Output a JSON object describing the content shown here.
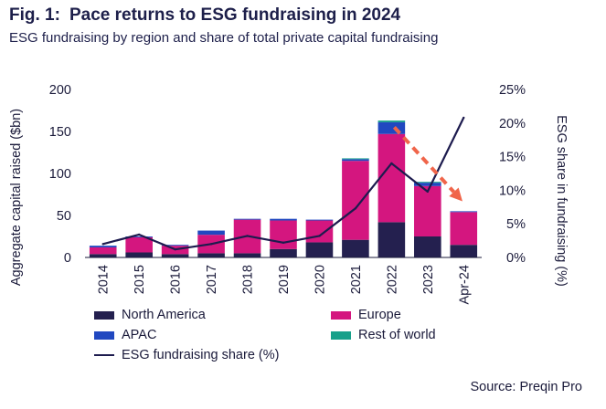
{
  "figure": {
    "number": "Fig. 1:",
    "title": "Pace returns to ESG fundraising in 2024",
    "subtitle": "ESG fundraising by region and share of total private capital fundraising",
    "source": "Source: Preqin Pro"
  },
  "colors": {
    "north_america": "#24204f",
    "europe": "#d4167f",
    "apac": "#2148c0",
    "rest_of_world": "#17a08a",
    "share_line": "#1d1b4e",
    "arrow": "#f0654a",
    "axis_text": "#1a1a3a"
  },
  "chart_data": {
    "type": "bar",
    "categories": [
      "2014",
      "2015",
      "2016",
      "2017",
      "2018",
      "2019",
      "2020",
      "2021",
      "2022",
      "2023",
      "Apr-24"
    ],
    "series": [
      {
        "name": "North America",
        "values": [
          4,
          6,
          4,
          5,
          5,
          10,
          18,
          21,
          42,
          25,
          15
        ]
      },
      {
        "name": "Europe",
        "values": [
          8,
          18,
          10,
          22,
          40,
          34,
          26,
          94,
          105,
          60,
          39
        ]
      },
      {
        "name": "APAC",
        "values": [
          2,
          1,
          1,
          5,
          1,
          2,
          1,
          2,
          14,
          4,
          1
        ]
      },
      {
        "name": "Rest of world",
        "values": [
          0,
          0,
          0,
          0,
          0,
          0,
          0,
          1,
          2,
          1,
          0
        ]
      }
    ],
    "line_series": {
      "name": "ESG fundraising share (%)",
      "values": [
        2.0,
        3.4,
        1.2,
        2.0,
        3.2,
        2.2,
        3.2,
        7.3,
        14.0,
        9.8,
        20.8
      ]
    },
    "ylabel": "Aggregate capital raised ($bn)",
    "y2label": "ESG share in fundraising (%)",
    "ylim": [
      0,
      200
    ],
    "y2lim": [
      0,
      25
    ],
    "yticks": [
      "0",
      "50",
      "100",
      "150",
      "200"
    ],
    "y2ticks": [
      "0%",
      "5%",
      "10%",
      "15%",
      "20%",
      "25%"
    ],
    "grid": false,
    "legend_placement": "bottom",
    "annotation": "dashed downward arrow from 2022 toward Apr-24"
  }
}
